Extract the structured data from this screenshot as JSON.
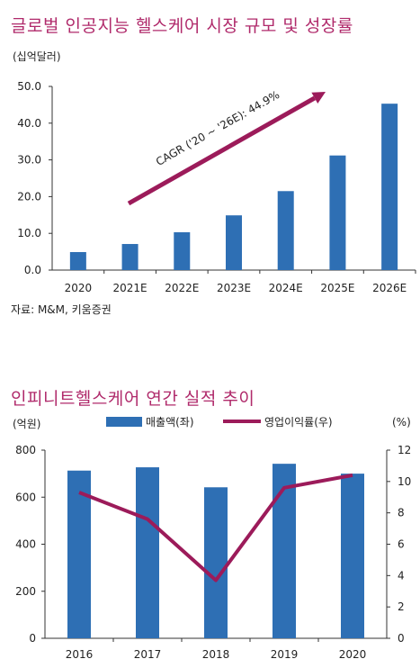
{
  "chart_data": [
    {
      "type": "bar",
      "title": "글로벌 인공지능 헬스케어 시장 규모 및 성장률",
      "unit_label": "(십억달러)",
      "categories": [
        "2020",
        "2021E",
        "2022E",
        "2023E",
        "2024E",
        "2025E",
        "2026E"
      ],
      "values": [
        4.9,
        7.1,
        10.3,
        14.9,
        21.5,
        31.2,
        45.3
      ],
      "ylim": [
        0,
        50
      ],
      "yticks": [
        "0.0",
        "10.0",
        "20.0",
        "30.0",
        "40.0",
        "50.0"
      ],
      "bar_color": "#2e6fb4",
      "annotation": {
        "text": "CAGR ('20 ~ '26E): 44.9%",
        "arrow_color": "#9c1b5a"
      },
      "source": "자료: M&M,  키움증권"
    },
    {
      "type": "bar+line",
      "title": "인피니트헬스케어 연간 실적 추이",
      "left_unit": "(억원)",
      "right_unit": "(%)",
      "categories": [
        "2016",
        "2017",
        "2018",
        "2019",
        "2020"
      ],
      "series": [
        {
          "name": "매출액(좌)",
          "type": "bar",
          "axis": "left",
          "values": [
            713,
            727,
            642,
            742,
            700
          ],
          "color": "#2e6fb4"
        },
        {
          "name": "영업이익률(우)",
          "type": "line",
          "axis": "right",
          "values": [
            9.3,
            7.6,
            3.7,
            9.6,
            10.4
          ],
          "color": "#9c1b5a"
        }
      ],
      "ylim_left": [
        0,
        800
      ],
      "ylim_right": [
        0,
        12
      ],
      "yticks_left": [
        "0",
        "200",
        "400",
        "600",
        "800"
      ],
      "yticks_right": [
        "0",
        "2",
        "4",
        "6",
        "8",
        "10",
        "12"
      ]
    }
  ]
}
